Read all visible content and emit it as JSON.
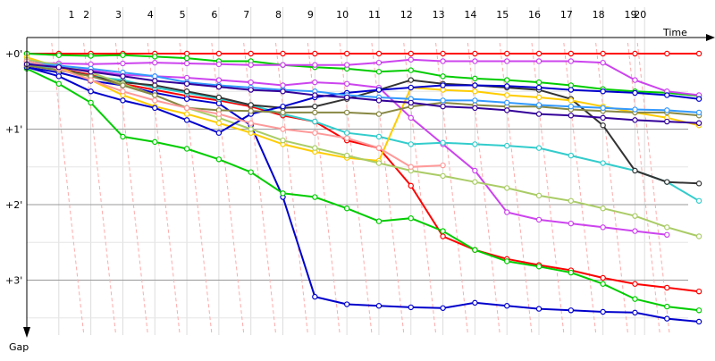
{
  "chart_data": {
    "type": "line",
    "title": "",
    "xlabel": "Time",
    "ylabel": "Gap",
    "x_ticks": [
      "1",
      "2",
      "3",
      "4",
      "5",
      "6",
      "7",
      "8",
      "9",
      "10",
      "11",
      "12",
      "13",
      "14",
      "15",
      "16",
      "17",
      "18",
      "19",
      "20"
    ],
    "x_tick_positions": [
      1,
      2,
      3,
      4,
      5,
      6,
      7,
      8,
      9,
      10,
      11,
      12,
      13,
      14,
      15,
      16,
      17,
      18,
      19,
      19.3
    ],
    "y_ticks": [
      "+0'",
      "+1'",
      "+2'",
      "+3'"
    ],
    "y_tick_values": [
      0,
      1,
      2,
      3
    ],
    "xlim": [
      0,
      21.5
    ],
    "ylim": [
      0,
      3.45
    ],
    "grid": true,
    "legend": "none",
    "series": [
      {
        "color": "#ff0000",
        "x": [
          0,
          1,
          2,
          3,
          4,
          5,
          6,
          7,
          8,
          9,
          10,
          11,
          12,
          13,
          14,
          15,
          16,
          17,
          18,
          19,
          20,
          21
        ],
        "y": [
          0,
          0,
          0,
          0,
          0,
          0,
          0,
          0,
          0,
          0,
          0,
          0,
          0,
          0,
          0,
          0,
          0,
          0,
          0,
          0,
          0,
          0
        ]
      },
      {
        "color": "#ff0000",
        "x": [
          0,
          1,
          2,
          3,
          4,
          5,
          6,
          7,
          8,
          9,
          10,
          11,
          12,
          13,
          14,
          15,
          16,
          17,
          18,
          19,
          20,
          21
        ],
        "y": [
          0.16,
          0.2,
          0.28,
          0.4,
          0.48,
          0.56,
          0.62,
          0.7,
          0.82,
          0.9,
          1.15,
          1.25,
          1.75,
          2.42,
          2.6,
          2.72,
          2.8,
          2.87,
          2.97,
          3.05,
          3.1,
          3.15
        ]
      },
      {
        "color": "#0000cc",
        "x": [
          0,
          1,
          2,
          3,
          4,
          5,
          6,
          7,
          8,
          9,
          10,
          11,
          12,
          13,
          14,
          15,
          16,
          17,
          18,
          19,
          20,
          21
        ],
        "y": [
          0.18,
          0.25,
          0.36,
          0.42,
          0.52,
          0.6,
          0.66,
          0.95,
          1.9,
          3.22,
          3.32,
          3.34,
          3.36,
          3.37,
          3.3,
          3.34,
          3.38,
          3.4,
          3.42,
          3.43,
          3.51,
          3.55
        ]
      },
      {
        "color": "#00cc00",
        "x": [
          0,
          1,
          2,
          3,
          4,
          5,
          6,
          7,
          8,
          9,
          10,
          11,
          12,
          13,
          14,
          15,
          16,
          17,
          18,
          19,
          20,
          21
        ],
        "y": [
          0.2,
          0.4,
          0.65,
          1.1,
          1.17,
          1.26,
          1.4,
          1.57,
          1.85,
          1.9,
          2.05,
          2.22,
          2.18,
          2.35,
          2.6,
          2.75,
          2.82,
          2.9,
          3.05,
          3.25,
          3.35,
          3.4
        ]
      },
      {
        "color": "#00cc00",
        "x": [
          0,
          1,
          2,
          3,
          4,
          5,
          6,
          7,
          8,
          9,
          10,
          11,
          12,
          13,
          14,
          15,
          16,
          17,
          18,
          19,
          20,
          21
        ],
        "y": [
          0,
          0.02,
          0.03,
          0.02,
          0.04,
          0.06,
          0.1,
          0.1,
          0.15,
          0.18,
          0.2,
          0.24,
          0.22,
          0.3,
          0.33,
          0.35,
          0.38,
          0.42,
          0.47,
          0.5,
          0.52,
          0.56
        ]
      },
      {
        "color": "#cc44ee",
        "x": [
          0,
          1,
          2,
          3,
          4,
          5,
          6,
          7,
          8,
          9,
          10,
          11,
          12,
          13,
          14,
          15,
          16,
          17,
          18,
          19,
          20,
          21
        ],
        "y": [
          0.12,
          0.13,
          0.14,
          0.13,
          0.12,
          0.13,
          0.14,
          0.15,
          0.15,
          0.15,
          0.15,
          0.12,
          0.08,
          0.1,
          0.1,
          0.1,
          0.1,
          0.1,
          0.12,
          0.35,
          0.5,
          0.55
        ]
      },
      {
        "color": "#cc44ee",
        "x": [
          0,
          1,
          2,
          3,
          4,
          5,
          6,
          7,
          8,
          9,
          10,
          11,
          12,
          13,
          14,
          15,
          16,
          17,
          18,
          19,
          20
        ],
        "y": [
          0.14,
          0.18,
          0.22,
          0.28,
          0.3,
          0.32,
          0.35,
          0.38,
          0.42,
          0.38,
          0.4,
          0.45,
          0.85,
          1.2,
          1.55,
          2.1,
          2.2,
          2.25,
          2.3,
          2.35,
          2.4
        ]
      },
      {
        "color": "#33cccc",
        "x": [
          0,
          1,
          2,
          3,
          4,
          5,
          6,
          7,
          8,
          9,
          10,
          11,
          12,
          13,
          14,
          15,
          16,
          17,
          18,
          19,
          20,
          21
        ],
        "y": [
          0.15,
          0.2,
          0.3,
          0.35,
          0.45,
          0.52,
          0.6,
          0.68,
          0.8,
          0.9,
          1.05,
          1.1,
          1.2,
          1.18,
          1.2,
          1.22,
          1.25,
          1.35,
          1.45,
          1.55,
          1.7,
          1.95
        ]
      },
      {
        "color": "#333333",
        "x": [
          0,
          1,
          2,
          3,
          4,
          5,
          6,
          7,
          8,
          9,
          10,
          11,
          12,
          13,
          14,
          15,
          16,
          17,
          18,
          19,
          20,
          21
        ],
        "y": [
          0.1,
          0.2,
          0.3,
          0.38,
          0.42,
          0.5,
          0.58,
          0.68,
          0.72,
          0.7,
          0.6,
          0.48,
          0.35,
          0.4,
          0.42,
          0.45,
          0.48,
          0.6,
          0.95,
          1.55,
          1.7,
          1.72
        ]
      },
      {
        "color": "#ffcc00",
        "x": [
          0,
          1,
          2,
          3,
          4,
          5,
          6,
          7,
          8,
          9,
          10,
          11,
          12,
          13,
          14,
          15,
          16,
          17,
          18,
          19,
          20,
          21
        ],
        "y": [
          0.05,
          0.18,
          0.35,
          0.55,
          0.7,
          0.8,
          0.92,
          1.05,
          1.2,
          1.3,
          1.38,
          1.42,
          0.45,
          0.48,
          0.5,
          0.55,
          0.58,
          0.62,
          0.7,
          0.78,
          0.85,
          0.95
        ]
      },
      {
        "color": "#aacc66",
        "x": [
          0,
          1,
          2,
          3,
          4,
          5,
          6,
          7,
          8,
          9,
          10,
          11,
          12,
          13,
          14,
          15,
          16,
          17,
          18,
          19,
          20,
          21
        ],
        "y": [
          0.08,
          0.15,
          0.25,
          0.4,
          0.55,
          0.72,
          0.85,
          1.0,
          1.15,
          1.25,
          1.35,
          1.45,
          1.55,
          1.62,
          1.7,
          1.78,
          1.88,
          1.95,
          2.05,
          2.15,
          2.3,
          2.42
        ]
      },
      {
        "color": "#0000cc",
        "x": [
          0,
          1,
          2,
          3,
          4,
          5,
          6,
          7,
          8,
          9,
          10,
          11,
          12,
          13,
          14,
          15,
          16,
          17,
          18,
          19,
          20,
          21
        ],
        "y": [
          0.18,
          0.3,
          0.5,
          0.62,
          0.72,
          0.88,
          1.05,
          0.8,
          0.7,
          0.58,
          0.52,
          0.48,
          0.45,
          0.42,
          0.42,
          0.43,
          0.45,
          0.48,
          0.5,
          0.52,
          0.55,
          0.6
        ]
      },
      {
        "color": "#888844",
        "x": [
          0,
          1,
          2,
          3,
          4,
          5,
          6,
          7,
          8,
          9,
          10,
          11,
          12,
          13,
          14,
          15,
          16,
          17,
          18,
          19,
          20,
          21
        ],
        "y": [
          0.16,
          0.22,
          0.3,
          0.42,
          0.55,
          0.72,
          0.75,
          0.76,
          0.78,
          0.78,
          0.78,
          0.8,
          0.7,
          0.65,
          0.68,
          0.7,
          0.7,
          0.74,
          0.76,
          0.78,
          0.78,
          0.82
        ]
      },
      {
        "color": "#3399ff",
        "x": [
          0,
          1,
          2,
          3,
          4,
          5,
          6,
          7,
          8,
          9,
          10,
          11,
          12,
          13,
          14,
          15,
          16,
          17,
          18,
          19,
          20,
          21
        ],
        "y": [
          0.12,
          0.16,
          0.2,
          0.25,
          0.3,
          0.38,
          0.42,
          0.45,
          0.48,
          0.5,
          0.55,
          0.58,
          0.6,
          0.62,
          0.62,
          0.65,
          0.68,
          0.7,
          0.72,
          0.74,
          0.75,
          0.78
        ]
      },
      {
        "color": "#ff9999",
        "x": [
          0,
          1,
          2,
          3,
          4,
          5,
          6,
          7,
          8,
          9,
          10,
          11,
          12,
          13
        ],
        "y": [
          0.1,
          0.2,
          0.35,
          0.5,
          0.62,
          0.72,
          0.8,
          0.92,
          1.0,
          1.05,
          1.12,
          1.25,
          1.5,
          1.48
        ]
      },
      {
        "color": "#330099",
        "x": [
          0,
          1,
          2,
          3,
          4,
          5,
          6,
          7,
          8,
          9,
          10,
          11,
          12,
          13,
          14,
          15,
          16,
          17,
          18,
          19,
          20,
          21
        ],
        "y": [
          0.14,
          0.18,
          0.24,
          0.3,
          0.36,
          0.4,
          0.44,
          0.48,
          0.5,
          0.55,
          0.58,
          0.62,
          0.65,
          0.7,
          0.72,
          0.75,
          0.8,
          0.82,
          0.85,
          0.88,
          0.9,
          0.92
        ]
      }
    ]
  }
}
